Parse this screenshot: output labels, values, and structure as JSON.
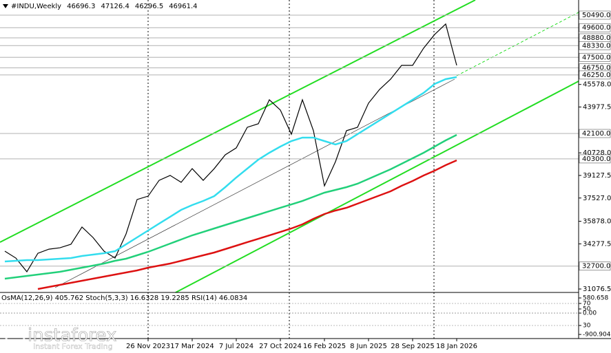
{
  "chart_data": {
    "type": "line",
    "symbol": "#INDU,Weekly",
    "ohlc": [
      46696.3,
      47126.4,
      46296.5,
      46961.4
    ],
    "categories": [
      null,
      null,
      null,
      null,
      null,
      null,
      null,
      null,
      null,
      null,
      null,
      null,
      null,
      "26 Nov 2023",
      null,
      null,
      null,
      "17 Mar 2024",
      null,
      null,
      null,
      "7 Jul 2024",
      null,
      null,
      null,
      "27 Oct 2024",
      null,
      null,
      null,
      "16 Feb 2025",
      null,
      null,
      null,
      "8 Jun 2025",
      null,
      null,
      null,
      "28 Sep 2025",
      null,
      null,
      null,
      "18 Jan 2026"
    ],
    "series": [
      {
        "color": "#000000",
        "values": [
          33760,
          33270,
          32300,
          33610,
          33900,
          34000,
          34250,
          35470,
          34730,
          33760,
          33270,
          34980,
          37420,
          37660,
          38780,
          39130,
          38640,
          39610,
          38780,
          39610,
          40590,
          41080,
          42540,
          42790,
          44490,
          43760,
          42050,
          44490,
          42300,
          38390,
          40100,
          42300,
          42540,
          44250,
          45220,
          45950,
          46930,
          46930,
          48150,
          49120,
          49860,
          46930
        ]
      },
      {
        "color": "#33ddee",
        "values": [
          33028,
          33076,
          33125,
          33125,
          33174,
          33223,
          33272,
          33418,
          33516,
          33613,
          33759,
          34247,
          34735,
          35223,
          35711,
          36198,
          36686,
          37028,
          37320,
          37662,
          38296,
          38979,
          39613,
          40247,
          40735,
          41174,
          41564,
          41808,
          41808,
          41564,
          41320,
          41564,
          42052,
          42540,
          43028,
          43515,
          44003,
          44491,
          44979,
          45613,
          45955,
          46101
        ]
      },
      {
        "color": "#22d07a",
        "values": [
          31808,
          31906,
          32003,
          32101,
          32198,
          32296,
          32442,
          32589,
          32735,
          32881,
          33076,
          33223,
          33467,
          33711,
          34003,
          34296,
          34589,
          34881,
          35125,
          35369,
          35613,
          35857,
          36101,
          36345,
          36589,
          36833,
          37076,
          37320,
          37613,
          37906,
          38101,
          38296,
          38540,
          38881,
          39223,
          39564,
          39954,
          40345,
          40735,
          41174,
          41613,
          42003
        ]
      },
      {
        "color": "#dd1111",
        "values": [
          null,
          null,
          null,
          31077,
          31223,
          31369,
          31516,
          31662,
          31808,
          31955,
          32101,
          32247,
          32394,
          32589,
          32735,
          32881,
          33076,
          33272,
          33467,
          33662,
          33906,
          34150,
          34394,
          34637,
          34881,
          35125,
          35369,
          35662,
          36052,
          36394,
          36638,
          36833,
          37125,
          37418,
          37711,
          38003,
          38393,
          38735,
          39125,
          39467,
          39857,
          40198
        ]
      }
    ],
    "ylim": [
      30833,
      51563
    ],
    "yticks": [
      {
        "value": 45578,
        "label": "45578.0"
      },
      {
        "value": 43977.5,
        "label": "43977.5"
      },
      {
        "value": 40728,
        "label": "40728.0"
      },
      {
        "value": 39127.5,
        "label": "39127.5"
      },
      {
        "value": 37527,
        "label": "37527.0"
      },
      {
        "value": 35878,
        "label": "35878.0"
      },
      {
        "value": 34277.5,
        "label": "34277.5"
      },
      {
        "value": 31076.5,
        "label": "31076.5"
      }
    ],
    "levels": [
      {
        "value": 50490,
        "label": "50490.0"
      },
      {
        "value": 49600,
        "label": "49600.0"
      },
      {
        "value": 48880,
        "label": "48880.0"
      },
      {
        "value": 48330,
        "label": "48330.0"
      },
      {
        "value": 47500,
        "label": "47500.0"
      },
      {
        "value": 46750,
        "label": "46750.0"
      },
      {
        "value": 46250,
        "label": "46250.0"
      },
      {
        "value": 42100,
        "label": "42100.0"
      },
      {
        "value": 40300,
        "label": "40300.0"
      },
      {
        "value": 32700,
        "label": "32700.0"
      }
    ],
    "indicator_label": "OsMA(12,26,9) 405.762 Stoch(5,3,3) 16.6328 19.2285 RSI(14) 46.0834",
    "osc_ticks": [
      580.658,
      70,
      50,
      {
        "value": 0,
        "label": "0.00"
      },
      30,
      -900.904
    ],
    "logo": {
      "brand": "instaforex",
      "tagline": "Instant Forex Trading"
    }
  }
}
